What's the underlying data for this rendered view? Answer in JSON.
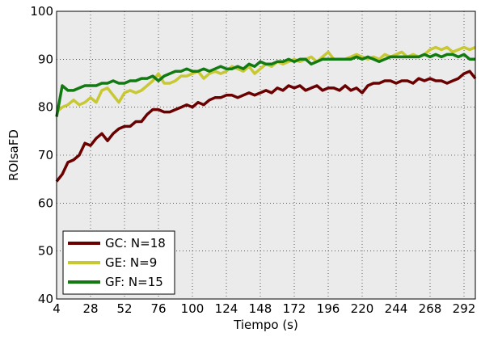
{
  "chart_data": {
    "type": "line",
    "x": [
      4,
      8,
      12,
      16,
      20,
      24,
      28,
      32,
      36,
      40,
      44,
      48,
      52,
      56,
      60,
      64,
      68,
      72,
      76,
      80,
      84,
      88,
      92,
      96,
      100,
      104,
      108,
      112,
      116,
      120,
      124,
      128,
      132,
      136,
      140,
      144,
      148,
      152,
      156,
      160,
      164,
      168,
      172,
      176,
      180,
      184,
      188,
      192,
      196,
      200,
      204,
      208,
      212,
      216,
      220,
      224,
      228,
      232,
      236,
      240,
      244,
      248,
      252,
      256,
      260,
      264,
      268,
      272,
      276,
      280,
      284,
      288,
      292,
      296,
      300
    ],
    "series": [
      {
        "name": "GC: N=18",
        "color": "#6b0000",
        "values": [
          64.5,
          66,
          68.5,
          69,
          70,
          72.5,
          72,
          73.5,
          74.5,
          73,
          74.5,
          75.5,
          76,
          76,
          77,
          77,
          78.5,
          79.5,
          79.5,
          79,
          79,
          79.5,
          80,
          80.5,
          80,
          81,
          80.5,
          81.5,
          82,
          82,
          82.5,
          82.5,
          82,
          82.5,
          83,
          82.5,
          83,
          83.5,
          83,
          84,
          83.5,
          84.5,
          84,
          84.5,
          83.5,
          84,
          84.5,
          83.5,
          84,
          84,
          83.5,
          84.5,
          83.5,
          84,
          83,
          84.5,
          85,
          85,
          85.5,
          85.5,
          85,
          85.5,
          85.5,
          85,
          86,
          85.5,
          86,
          85.5,
          85.5,
          85,
          85.5,
          86,
          87,
          87.5,
          86
        ]
      },
      {
        "name": "GE: N=9",
        "color": "#c8c832",
        "values": [
          79,
          80,
          80.5,
          81.5,
          80.5,
          81,
          82,
          81,
          83.5,
          84,
          82.5,
          81,
          83,
          83.5,
          83,
          83.5,
          84.5,
          85.5,
          87,
          85,
          85,
          85.5,
          86.5,
          86.5,
          87,
          87.5,
          86,
          87,
          87.5,
          87,
          87.5,
          88.5,
          88,
          87.5,
          88.5,
          87,
          88,
          89,
          88.5,
          89.5,
          89,
          89.5,
          90,
          89.5,
          90,
          90.5,
          89.5,
          90.5,
          91.5,
          90,
          90,
          90,
          90.5,
          91,
          90.5,
          90,
          90.5,
          90,
          91,
          90.5,
          91,
          91.5,
          90.5,
          91,
          90.5,
          91,
          92,
          92.5,
          92,
          92.5,
          91.5,
          92,
          92.5,
          92,
          92.5
        ]
      },
      {
        "name": "GF: N=15",
        "color": "#117a11",
        "values": [
          78,
          84.5,
          83.5,
          83.5,
          84,
          84.5,
          84.5,
          84.5,
          85,
          85,
          85.5,
          85,
          85,
          85.5,
          85.5,
          86,
          86,
          86.5,
          85.5,
          86.5,
          87,
          87.5,
          87.5,
          88,
          87.5,
          87.5,
          88,
          87.5,
          88,
          88.5,
          88,
          88,
          88.5,
          88,
          89,
          88.5,
          89.5,
          89,
          89,
          89.5,
          89.5,
          90,
          89.5,
          90,
          90,
          89,
          89.5,
          90,
          90,
          90,
          90,
          90,
          90,
          90.5,
          90,
          90.5,
          90,
          89.5,
          90,
          90.5,
          90.5,
          90.5,
          90.5,
          90.5,
          90.5,
          91,
          90.5,
          91,
          90.5,
          91,
          91,
          90.5,
          91,
          90,
          90
        ]
      }
    ],
    "xlabel": "Tiempo (s)",
    "ylabel": "ROIsaFD",
    "xlim": [
      4,
      300
    ],
    "xticks": [
      4,
      28,
      52,
      76,
      100,
      124,
      148,
      172,
      196,
      220,
      244,
      268,
      292
    ],
    "ylim": [
      40,
      100
    ],
    "yticks": [
      40,
      50,
      60,
      70,
      80,
      90,
      100
    ],
    "grid": true,
    "legend": "lower left"
  }
}
